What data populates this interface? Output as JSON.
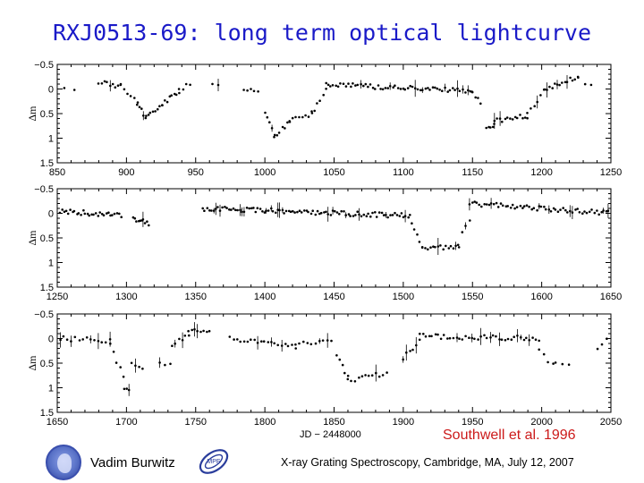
{
  "slide": {
    "title": "RXJ0513-69: long term optical lightcurve",
    "xlabel": "JD − 2448000",
    "citation": "Southwell et al. 1996",
    "presenter": "Vadim Burwitz",
    "footer": "X-ray Grating Spectroscopy, Cambridge, MA, July 12, 2007",
    "logo_left": "MPG",
    "logo_right": "MPE"
  },
  "chart_data": [
    {
      "type": "scatter",
      "ylabel": "Δm",
      "xlim": [
        850,
        1250
      ],
      "ylim": [
        -0.5,
        1.5
      ],
      "y_inverted": true,
      "xticks": [
        850,
        900,
        950,
        1000,
        1050,
        1100,
        1150,
        1200,
        1250
      ],
      "xtick_labels": [
        "850",
        "900",
        "950",
        "1000",
        "1050",
        "1100",
        "1150",
        "1200",
        "1250"
      ],
      "yticks": [
        -0.5,
        0,
        0.5,
        1,
        1.5
      ],
      "ytick_labels": [
        "−0.5",
        "0",
        "0.5",
        "1",
        "1.5"
      ],
      "segments": [
        {
          "x0": 855,
          "x1": 862,
          "y0": 0.0,
          "y1": 0.0,
          "n": 2
        },
        {
          "x0": 880,
          "x1": 896,
          "y0": -0.15,
          "y1": -0.05,
          "n": 9
        },
        {
          "x0": 896,
          "x1": 908,
          "y0": -0.1,
          "y1": 0.3,
          "n": 6
        },
        {
          "x0": 908,
          "x1": 914,
          "y0": 0.3,
          "y1": 0.6,
          "n": 5
        },
        {
          "x0": 914,
          "x1": 926,
          "y0": 0.55,
          "y1": 0.3,
          "n": 8
        },
        {
          "x0": 926,
          "x1": 938,
          "y0": 0.3,
          "y1": 0.05,
          "n": 8
        },
        {
          "x0": 938,
          "x1": 946,
          "y0": 0.05,
          "y1": -0.1,
          "n": 4
        },
        {
          "x0": 962,
          "x1": 966,
          "y0": -0.1,
          "y1": -0.1,
          "n": 2
        },
        {
          "x0": 985,
          "x1": 995,
          "y0": 0.0,
          "y1": 0.05,
          "n": 5
        },
        {
          "x0": 1000,
          "x1": 1007,
          "y0": 0.5,
          "y1": 0.95,
          "n": 5
        },
        {
          "x0": 1007,
          "x1": 1018,
          "y0": 0.95,
          "y1": 0.65,
          "n": 7
        },
        {
          "x0": 1018,
          "x1": 1034,
          "y0": 0.65,
          "y1": 0.5,
          "n": 8
        },
        {
          "x0": 1034,
          "x1": 1044,
          "y0": 0.5,
          "y1": 0.0,
          "n": 6
        },
        {
          "x0": 1044,
          "x1": 1150,
          "y0": -0.1,
          "y1": 0.05,
          "n": 60
        },
        {
          "x0": 1150,
          "x1": 1156,
          "y0": 0.05,
          "y1": 0.3,
          "n": 4
        },
        {
          "x0": 1160,
          "x1": 1166,
          "y0": 0.8,
          "y1": 0.7,
          "n": 5
        },
        {
          "x0": 1166,
          "x1": 1190,
          "y0": 0.65,
          "y1": 0.55,
          "n": 14
        },
        {
          "x0": 1190,
          "x1": 1202,
          "y0": 0.5,
          "y1": 0.05,
          "n": 6
        },
        {
          "x0": 1202,
          "x1": 1226,
          "y0": 0.0,
          "y1": -0.25,
          "n": 14
        },
        {
          "x0": 1226,
          "x1": 1236,
          "y0": -0.2,
          "y1": -0.05,
          "n": 3
        }
      ]
    },
    {
      "type": "scatter",
      "ylabel": "Δm",
      "xlim": [
        1250,
        1650
      ],
      "ylim": [
        -0.5,
        1.5
      ],
      "y_inverted": true,
      "xticks": [
        1250,
        1300,
        1350,
        1400,
        1450,
        1500,
        1550,
        1600,
        1650
      ],
      "xtick_labels": [
        "1250",
        "1300",
        "1350",
        "1400",
        "1450",
        "1500",
        "1550",
        "1600",
        "1650"
      ],
      "yticks": [
        -0.5,
        0,
        0.5,
        1,
        1.5
      ],
      "ytick_labels": [
        "−0.5",
        "0",
        "0.5",
        "1",
        "1.5"
      ],
      "segments": [
        {
          "x0": 1252,
          "x1": 1296,
          "y0": -0.05,
          "y1": 0.05,
          "n": 30
        },
        {
          "x0": 1305,
          "x1": 1316,
          "y0": 0.1,
          "y1": 0.2,
          "n": 10
        },
        {
          "x0": 1355,
          "x1": 1505,
          "y0": -0.1,
          "y1": 0.05,
          "n": 95
        },
        {
          "x0": 1506,
          "x1": 1514,
          "y0": 0.2,
          "y1": 0.65,
          "n": 5
        },
        {
          "x0": 1514,
          "x1": 1540,
          "y0": 0.7,
          "y1": 0.7,
          "n": 15
        },
        {
          "x0": 1540,
          "x1": 1548,
          "y0": 0.6,
          "y1": 0.1,
          "n": 4
        },
        {
          "x0": 1548,
          "x1": 1650,
          "y0": -0.2,
          "y1": 0.0,
          "n": 60
        }
      ]
    },
    {
      "type": "scatter",
      "ylabel": "Δm",
      "xlim": [
        1650,
        2050
      ],
      "ylim": [
        -0.5,
        1.5
      ],
      "y_inverted": true,
      "xticks": [
        1650,
        1700,
        1750,
        1800,
        1850,
        1900,
        1950,
        2000,
        2050
      ],
      "xtick_labels": [
        "1650",
        "1700",
        "1750",
        "1800",
        "1850",
        "1900",
        "1950",
        "2000",
        "2050"
      ],
      "yticks": [
        -0.5,
        0,
        0.5,
        1,
        1.5
      ],
      "ytick_labels": [
        "−0.5",
        "0",
        "0.5",
        "1",
        "1.5"
      ],
      "segments": [
        {
          "x0": 1652,
          "x1": 1688,
          "y0": 0.0,
          "y1": 0.05,
          "n": 14
        },
        {
          "x0": 1688,
          "x1": 1698,
          "y0": 0.1,
          "y1": 0.8,
          "n": 5
        },
        {
          "x0": 1698,
          "x1": 1702,
          "y0": 1.0,
          "y1": 1.0,
          "n": 3
        },
        {
          "x0": 1704,
          "x1": 1712,
          "y0": 0.5,
          "y1": 0.6,
          "n": 4
        },
        {
          "x0": 1724,
          "x1": 1732,
          "y0": 0.5,
          "y1": 0.55,
          "n": 3
        },
        {
          "x0": 1733,
          "x1": 1745,
          "y0": 0.1,
          "y1": -0.05,
          "n": 6
        },
        {
          "x0": 1745,
          "x1": 1760,
          "y0": -0.2,
          "y1": -0.15,
          "n": 8
        },
        {
          "x0": 1775,
          "x1": 1822,
          "y0": 0.0,
          "y1": 0.15,
          "n": 20
        },
        {
          "x0": 1822,
          "x1": 1848,
          "y0": 0.1,
          "y1": 0.05,
          "n": 10
        },
        {
          "x0": 1852,
          "x1": 1860,
          "y0": 0.3,
          "y1": 0.8,
          "n": 5
        },
        {
          "x0": 1860,
          "x1": 1888,
          "y0": 0.85,
          "y1": 0.7,
          "n": 12
        },
        {
          "x0": 1900,
          "x1": 1912,
          "y0": 0.4,
          "y1": 0.05,
          "n": 6
        },
        {
          "x0": 1912,
          "x1": 1998,
          "y0": -0.05,
          "y1": 0.0,
          "n": 40
        },
        {
          "x0": 1998,
          "x1": 2008,
          "y0": 0.2,
          "y1": 0.55,
          "n": 4
        },
        {
          "x0": 2010,
          "x1": 2020,
          "y0": 0.5,
          "y1": 0.5,
          "n": 3
        },
        {
          "x0": 2040,
          "x1": 2050,
          "y0": 0.2,
          "y1": -0.1,
          "n": 4
        }
      ]
    }
  ]
}
